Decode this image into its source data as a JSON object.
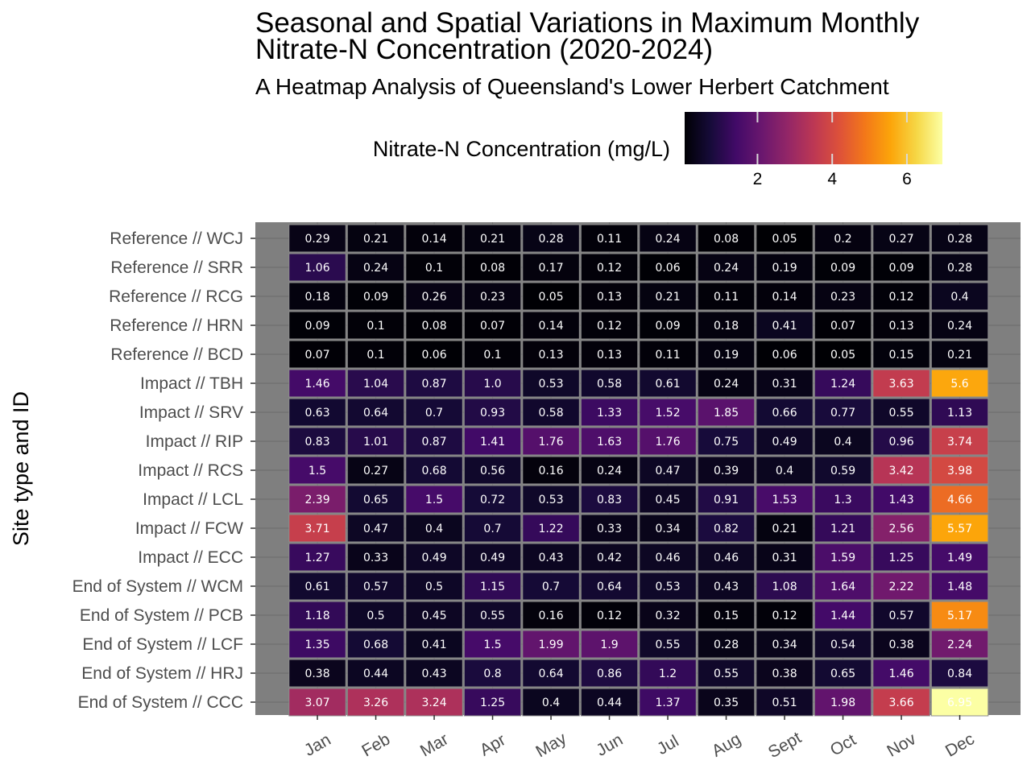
{
  "chart_data": {
    "type": "heatmap",
    "title": [
      "Seasonal and Spatial Variations in Maximum Monthly",
      "Nitrate-N Concentration (2020-2024)"
    ],
    "subtitle": "A Heatmap Analysis of Queensland's Lower Herbert Catchment",
    "ylabel": "Site type and ID",
    "xlabel": "",
    "legend": {
      "title": "Nitrate-N Concentration (mg/L)",
      "position": "top",
      "range": [
        0.05,
        6.95
      ],
      "ticks": [
        2,
        4,
        6
      ],
      "tick_labels": [
        "2",
        "4",
        "6"
      ],
      "palette": "inferno"
    },
    "x": [
      "Jan",
      "Feb",
      "Mar",
      "Apr",
      "May",
      "Jun",
      "Jul",
      "Aug",
      "Sept",
      "Oct",
      "Nov",
      "Dec"
    ],
    "y": [
      "Reference // WCJ",
      "Reference // SRR",
      "Reference // RCG",
      "Reference // HRN",
      "Reference // BCD",
      "Impact // TBH ",
      "Impact // SRV",
      "Impact // RIP",
      "Impact // RCS",
      "Impact // LCL",
      "Impact // FCW",
      "Impact // ECC",
      "End of System // WCM",
      "End of System // PCB",
      "End of System // LCF",
      "End of System // HRJ",
      "End of System // CCC"
    ],
    "values": [
      [
        "0.29",
        "0.21",
        "0.14",
        "0.21",
        "0.28",
        "0.11",
        "0.24",
        "0.08",
        "0.05",
        "0.2",
        "0.27",
        "0.28"
      ],
      [
        "1.06",
        "0.24",
        "0.1",
        "0.08",
        "0.17",
        "0.12",
        "0.06",
        "0.24",
        "0.19",
        "0.09",
        "0.09",
        "0.28"
      ],
      [
        "0.18",
        "0.09",
        "0.26",
        "0.23",
        "0.05",
        "0.13",
        "0.21",
        "0.11",
        "0.14",
        "0.23",
        "0.12",
        "0.4"
      ],
      [
        "0.09",
        "0.1",
        "0.08",
        "0.07",
        "0.14",
        "0.12",
        "0.09",
        "0.18",
        "0.41",
        "0.07",
        "0.13",
        "0.24"
      ],
      [
        "0.07",
        "0.1",
        "0.06",
        "0.1",
        "0.13",
        "0.13",
        "0.11",
        "0.19",
        "0.06",
        "0.05",
        "0.15",
        "0.21"
      ],
      [
        "1.46",
        "1.04",
        "0.87",
        "1.0",
        "0.53",
        "0.58",
        "0.61",
        "0.24",
        "0.31",
        "1.24",
        "3.63",
        "5.6"
      ],
      [
        "0.63",
        "0.64",
        "0.7",
        "0.93",
        "0.58",
        "1.33",
        "1.52",
        "1.85",
        "0.66",
        "0.77",
        "0.55",
        "1.13"
      ],
      [
        "0.83",
        "1.01",
        "0.87",
        "1.41",
        "1.76",
        "1.63",
        "1.76",
        "0.75",
        "0.49",
        "0.4",
        "0.96",
        "3.74"
      ],
      [
        "1.5",
        "0.27",
        "0.68",
        "0.56",
        "0.16",
        "0.24",
        "0.47",
        "0.39",
        "0.4",
        "0.59",
        "3.42",
        "3.98"
      ],
      [
        "2.39",
        "0.65",
        "1.5",
        "0.72",
        "0.53",
        "0.83",
        "0.45",
        "0.91",
        "1.53",
        "1.3",
        "1.43",
        "4.66"
      ],
      [
        "3.71",
        "0.47",
        "0.4",
        "0.7",
        "1.22",
        "0.33",
        "0.34",
        "0.82",
        "0.21",
        "1.21",
        "2.56",
        "5.57"
      ],
      [
        "1.27",
        "0.33",
        "0.49",
        "0.49",
        "0.43",
        "0.42",
        "0.46",
        "0.46",
        "0.31",
        "1.59",
        "1.25",
        "1.49"
      ],
      [
        "0.61",
        "0.57",
        "0.5",
        "1.15",
        "0.7",
        "0.64",
        "0.53",
        "0.43",
        "1.08",
        "1.64",
        "2.22",
        "1.48"
      ],
      [
        "1.18",
        "0.5",
        "0.45",
        "0.55",
        "0.16",
        "0.12",
        "0.32",
        "0.15",
        "0.12",
        "1.44",
        "0.57",
        "5.17"
      ],
      [
        "1.35",
        "0.68",
        "0.41",
        "1.5",
        "1.99",
        "1.9",
        "0.55",
        "0.28",
        "0.34",
        "0.54",
        "0.38",
        "2.24"
      ],
      [
        "0.38",
        "0.44",
        "0.43",
        "0.8",
        "0.64",
        "0.86",
        "1.2",
        "0.55",
        "0.38",
        "0.65",
        "1.46",
        "0.84"
      ],
      [
        "3.07",
        "3.26",
        "3.24",
        "1.25",
        "0.4",
        "0.44",
        "1.37",
        "0.35",
        "0.51",
        "1.98",
        "3.66",
        "6.95"
      ]
    ],
    "colors": {
      "panel_background": "#7f7f7f",
      "grid": "#6b6b6b",
      "cell_border": "#8c8c8c",
      "cell_text": "#ffffff",
      "axis_text": "#4d4d4d"
    }
  }
}
